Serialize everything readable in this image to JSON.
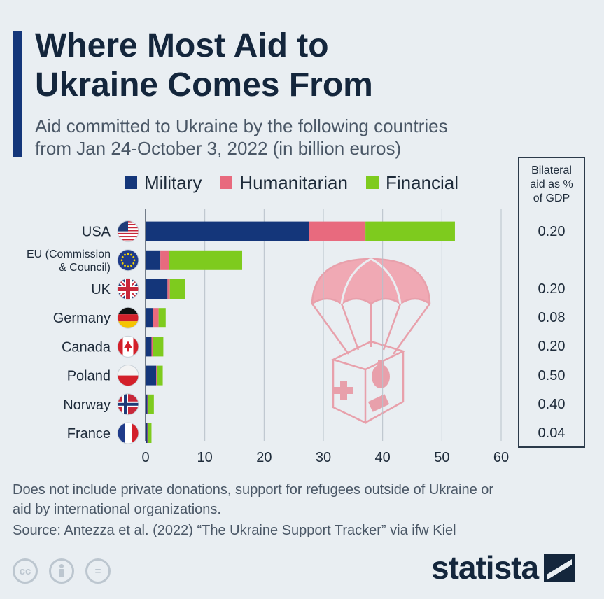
{
  "title": "Where Most Aid to Ukraine Comes From",
  "subtitle_line1": "Aid committed to Ukraine by the following countries",
  "subtitle_line2": "from Jan 24-October 3, 2022 (in billion euros)",
  "gdp_header": [
    "Bilateral",
    "aid as %",
    "of GDP"
  ],
  "footnote_line1": "Does not include private donations, support for refugees outside of Ukraine or",
  "footnote_line2": "aid by international organizations.",
  "source": "Source: Antezza et al. (2022) “The Ukraine Support Tracker” via ifw Kiel",
  "brand": "statista",
  "colors": {
    "military": "#14367a",
    "humanitarian": "#e86a7e",
    "financial": "#7ecb1e",
    "accent": "#14367a"
  },
  "icons": {
    "license": [
      "cc-icon",
      "attribution-icon",
      "no-derivatives-icon"
    ],
    "illustration": "parachute-aid-box-icon"
  },
  "chart_data": {
    "type": "bar",
    "orientation": "horizontal",
    "stacked": true,
    "categories": [
      {
        "label": [
          "USA"
        ],
        "flag": "usa-flag-icon"
      },
      {
        "label": [
          "EU (Commission",
          "& Council)"
        ],
        "flag": "eu-flag-icon"
      },
      {
        "label": [
          "UK"
        ],
        "flag": "uk-flag-icon"
      },
      {
        "label": [
          "Germany"
        ],
        "flag": "germany-flag-icon"
      },
      {
        "label": [
          "Canada"
        ],
        "flag": "canada-flag-icon"
      },
      {
        "label": [
          "Poland"
        ],
        "flag": "poland-flag-icon"
      },
      {
        "label": [
          "Norway"
        ],
        "flag": "norway-flag-icon"
      },
      {
        "label": [
          "France"
        ],
        "flag": "france-flag-icon"
      }
    ],
    "series": [
      {
        "name": "Military",
        "color": "#14367a",
        "values": [
          27.6,
          2.5,
          3.7,
          1.2,
          1.0,
          1.8,
          0.3,
          0.3
        ]
      },
      {
        "name": "Humanitarian",
        "color": "#e86a7e",
        "values": [
          9.5,
          1.5,
          0.4,
          1.0,
          0.2,
          0.1,
          0.1,
          0.1
        ]
      },
      {
        "name": "Financial",
        "color": "#7ecb1e",
        "values": [
          15.1,
          12.3,
          2.6,
          1.2,
          1.8,
          1.0,
          1.0,
          0.6
        ]
      }
    ],
    "gdp_percent": [
      "0.20",
      "",
      "0.20",
      "0.08",
      "0.20",
      "0.50",
      "0.40",
      "0.04"
    ],
    "xticks": [
      "0",
      "10",
      "20",
      "30",
      "40",
      "50",
      "60"
    ],
    "xlim": [
      0,
      60
    ],
    "grid": true,
    "legend": "top"
  }
}
